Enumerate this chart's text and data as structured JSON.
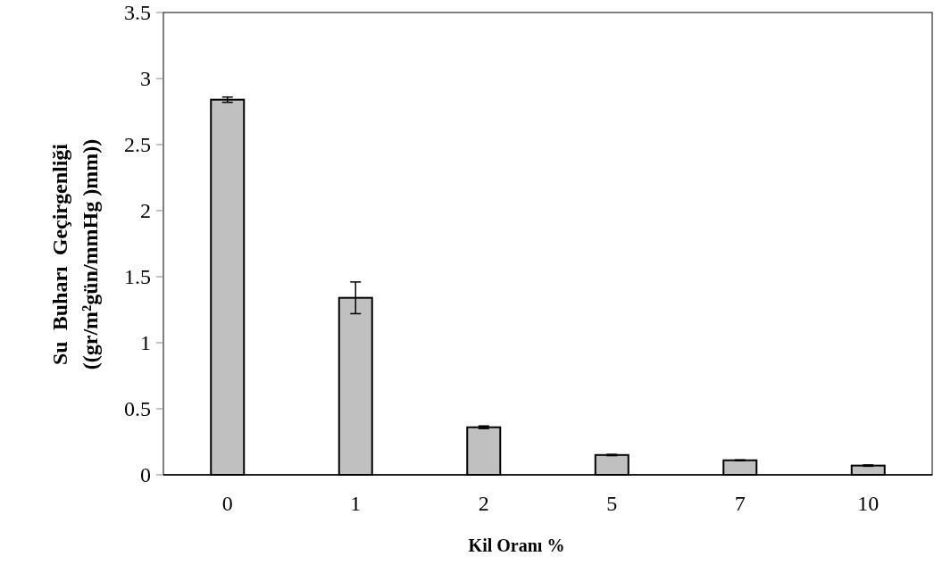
{
  "chart_data": {
    "type": "bar",
    "xlabel": "Kil Oranı %",
    "ylabel": "Su  Buharı  Geçirgenliği\n((gr/m²gün/mmHg )mm))",
    "categories": [
      "0",
      "1",
      "2",
      "5",
      "7",
      "10"
    ],
    "values": [
      2.84,
      1.34,
      0.36,
      0.15,
      0.11,
      0.07
    ],
    "errors": [
      0.02,
      0.12,
      0.01,
      0.005,
      0.003,
      0.005
    ],
    "color": "#c0c0c0",
    "ylim": [
      0,
      3.5
    ],
    "yticks": [
      0,
      0.5,
      1,
      1.5,
      2,
      2.5,
      3,
      3.5
    ],
    "grid": false
  }
}
